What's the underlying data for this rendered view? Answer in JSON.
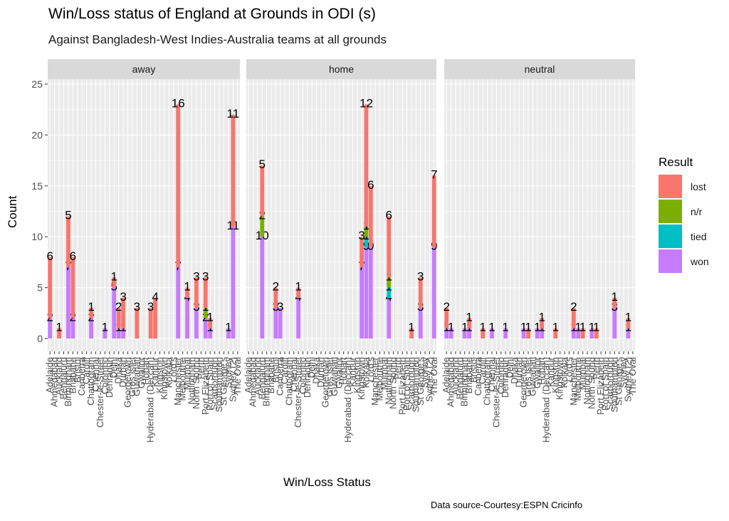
{
  "chart_data": {
    "type": "bar",
    "stacked": true,
    "title": "Win/Loss status of England at Grounds in ODI (s)",
    "subtitle": "Against Bangladesh-West Indies-Australia  teams at all grounds",
    "xlabel": "Win/Loss Status",
    "ylabel": "Count",
    "caption": "Data source-Courtesy:ESPN Cricinfo",
    "ylim": [
      0,
      27
    ],
    "yticks": [
      0,
      5,
      10,
      15,
      20,
      25
    ],
    "grid": true,
    "legend": {
      "title": "Result",
      "position": "right",
      "entries": [
        {
          "name": "lost",
          "color": "#F8766D"
        },
        {
          "name": "n/r",
          "color": "#7CAE00"
        },
        {
          "name": "tied",
          "color": "#00BFC4"
        },
        {
          "name": "won",
          "color": "#C77CFF"
        }
      ]
    },
    "stack_order": [
      "won",
      "tied",
      "n/r",
      "lost"
    ],
    "facets": [
      "away",
      "home",
      "neutral"
    ],
    "categories": [
      "Adelaide",
      "Ahmedabad",
      "Auckland",
      "Bengaluru",
      "Birmingham",
      "Brisbane",
      "Bristol",
      "Canberra",
      "Cardiff",
      "Chattogram",
      "Chennai",
      "Chester-le-Street",
      "Colombo",
      "Dehradun",
      "Delhi",
      "Dhaka",
      "Durban",
      "Georgetown",
      "Gros Islet",
      "Guwahati",
      "Gwalior",
      "Hobart",
      "Hyderabad (Deccan)",
      "Kanpur",
      "Kingston",
      "Kingstown",
      "Kolkata",
      "Lord's",
      "Manchester",
      "Melbourne",
      "Mumbai",
      "Nottingham",
      "North Sound",
      "Perth",
      "Port Elizabeth",
      "Port of Spain",
      "Scarborough",
      "Southampton",
      "St George's",
      "Sydney",
      "Sydney (2)",
      "The Oval"
    ],
    "series_by_facet": {
      "away": [
        {
          "index": 0,
          "won": 2,
          "lost": 6
        },
        {
          "index": 2,
          "lost": 1
        },
        {
          "index": 4,
          "won": 7,
          "lost": 5
        },
        {
          "index": 5,
          "won": 2,
          "lost": 6
        },
        {
          "index": 9,
          "won": 2,
          "lost": 1
        },
        {
          "index": 12,
          "won": 1
        },
        {
          "index": 14,
          "won": 5,
          "lost": 1
        },
        {
          "index": 15,
          "won": 1,
          "lost": 2
        },
        {
          "index": 16,
          "won": 1,
          "lost": 3
        },
        {
          "index": 19,
          "lost": 3
        },
        {
          "index": 22,
          "lost": 3
        },
        {
          "index": 23,
          "lost": 4
        },
        {
          "index": 28,
          "won": 7,
          "lost": 16
        },
        {
          "index": 30,
          "won": 4,
          "lost": 1
        },
        {
          "index": 32,
          "won": 3,
          "lost": 3
        },
        {
          "index": 34,
          "won": 2,
          "n/r": 1,
          "lost": 3
        },
        {
          "index": 35,
          "won": 1,
          "lost": 1
        },
        {
          "index": 39,
          "won": 1
        },
        {
          "index": 40,
          "won": 11,
          "lost": 11
        }
      ],
      "home": [
        {
          "index": 3,
          "won": 10,
          "n/r": 2,
          "lost": 5
        },
        {
          "index": 6,
          "won": 3,
          "lost": 2
        },
        {
          "index": 7,
          "won": 3
        },
        {
          "index": 11,
          "won": 4,
          "lost": 1
        },
        {
          "index": 25,
          "won": 7,
          "lost": 3
        },
        {
          "index": 26,
          "won": 9,
          "tied": 1,
          "n/r": 1,
          "lost": 12
        },
        {
          "index": 27,
          "won": 9,
          "lost": 6
        },
        {
          "index": 31,
          "won": 4,
          "tied": 1,
          "n/r": 1,
          "lost": 6
        },
        {
          "index": 36,
          "lost": 1
        },
        {
          "index": 38,
          "won": 3,
          "lost": 3
        },
        {
          "index": 41,
          "won": 9,
          "lost": 7
        }
      ],
      "neutral": [
        {
          "index": 0,
          "won": 1,
          "lost": 2
        },
        {
          "index": 1,
          "won": 1
        },
        {
          "index": 4,
          "won": 1
        },
        {
          "index": 5,
          "won": 1,
          "lost": 1
        },
        {
          "index": 8,
          "lost": 1
        },
        {
          "index": 10,
          "won": 1
        },
        {
          "index": 13,
          "won": 1
        },
        {
          "index": 17,
          "won": 1
        },
        {
          "index": 18,
          "lost": 1
        },
        {
          "index": 20,
          "won": 1
        },
        {
          "index": 21,
          "won": 1,
          "lost": 1
        },
        {
          "index": 24,
          "lost": 1
        },
        {
          "index": 28,
          "won": 1,
          "lost": 2
        },
        {
          "index": 29,
          "won": 1
        },
        {
          "index": 30,
          "lost": 1
        },
        {
          "index": 32,
          "won": 1
        },
        {
          "index": 33,
          "lost": 1
        },
        {
          "index": 37,
          "won": 3,
          "lost": 1
        },
        {
          "index": 40,
          "won": 1,
          "lost": 1
        }
      ]
    }
  }
}
